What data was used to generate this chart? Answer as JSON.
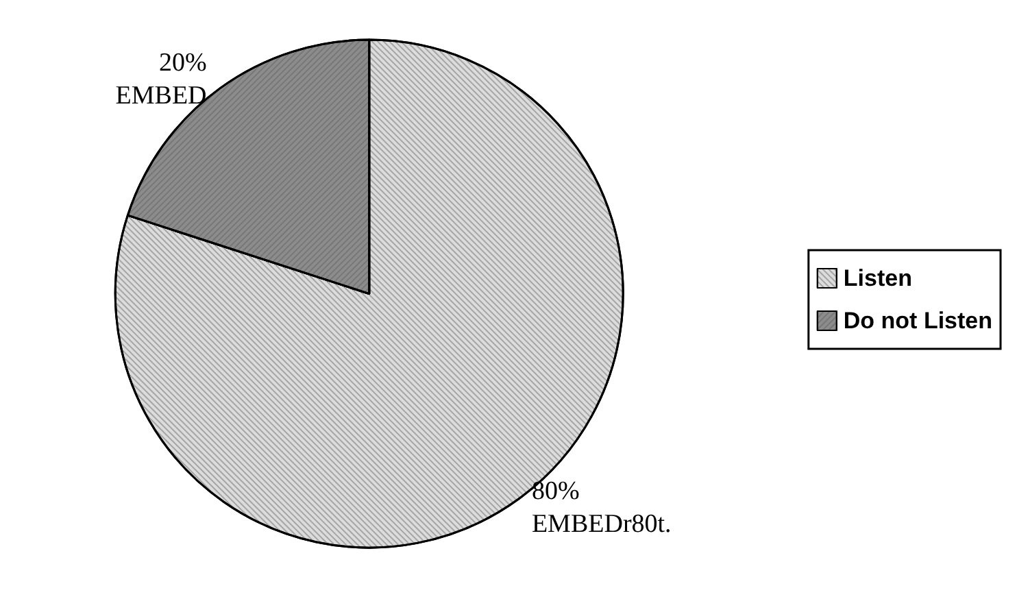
{
  "chart_data": {
    "type": "pie",
    "categories": [
      "Listen",
      "Do not Listen"
    ],
    "values": [
      80,
      20
    ],
    "colors": [
      "#dcdcdc",
      "#8c8c8c"
    ],
    "value_labels": [
      "80%\nEMBEDr80t.",
      "20%\nEMBED"
    ],
    "legend": "right"
  }
}
